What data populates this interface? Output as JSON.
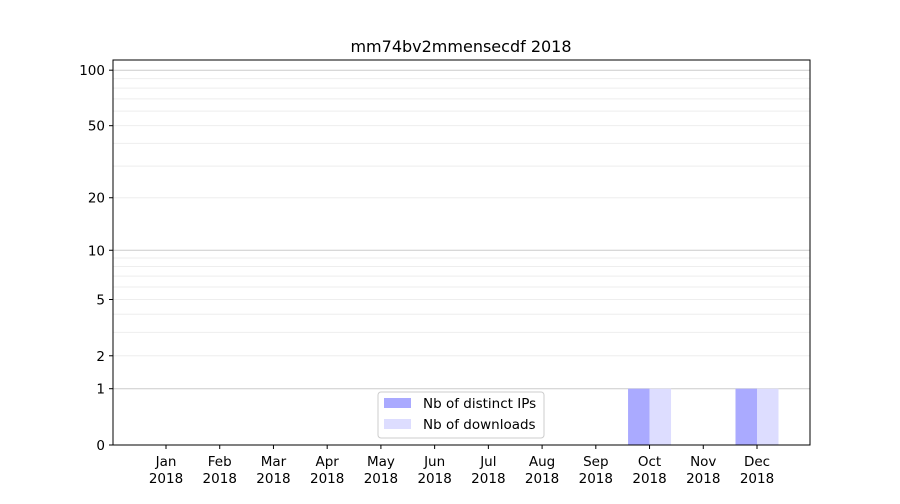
{
  "chart_data": {
    "type": "bar",
    "title": "mm74bv2mmensecdf 2018",
    "xlabel": "",
    "ylabel": "",
    "y_scale": "symlog (log10(1+y))",
    "ylim": [
      0,
      113
    ],
    "y_ticks": [
      0,
      1,
      2,
      5,
      10,
      20,
      50,
      100
    ],
    "y_tick_labels": [
      "0",
      "1",
      "2",
      "5",
      "10",
      "20",
      "50",
      "100"
    ],
    "grid": true,
    "legend_position": "lower-center",
    "categories": [
      "Jan\n2018",
      "Feb\n2018",
      "Mar\n2018",
      "Apr\n2018",
      "May\n2018",
      "Jun\n2018",
      "Jul\n2018",
      "Aug\n2018",
      "Sep\n2018",
      "Oct\n2018",
      "Nov\n2018",
      "Dec\n2018"
    ],
    "category_labels": [
      [
        "Jan",
        "2018"
      ],
      [
        "Feb",
        "2018"
      ],
      [
        "Mar",
        "2018"
      ],
      [
        "Apr",
        "2018"
      ],
      [
        "May",
        "2018"
      ],
      [
        "Jun",
        "2018"
      ],
      [
        "Jul",
        "2018"
      ],
      [
        "Aug",
        "2018"
      ],
      [
        "Sep",
        "2018"
      ],
      [
        "Oct",
        "2018"
      ],
      [
        "Nov",
        "2018"
      ],
      [
        "Dec",
        "2018"
      ]
    ],
    "series": [
      {
        "name": "Nb of distinct IPs",
        "color": "#aaaaff",
        "values": [
          0,
          0,
          0,
          0,
          0,
          0,
          0,
          0,
          0,
          1,
          0,
          1
        ]
      },
      {
        "name": "Nb of downloads",
        "color": "#ddddff",
        "values": [
          0,
          0,
          0,
          0,
          0,
          0,
          0,
          0,
          0,
          1,
          0,
          1
        ]
      }
    ]
  }
}
